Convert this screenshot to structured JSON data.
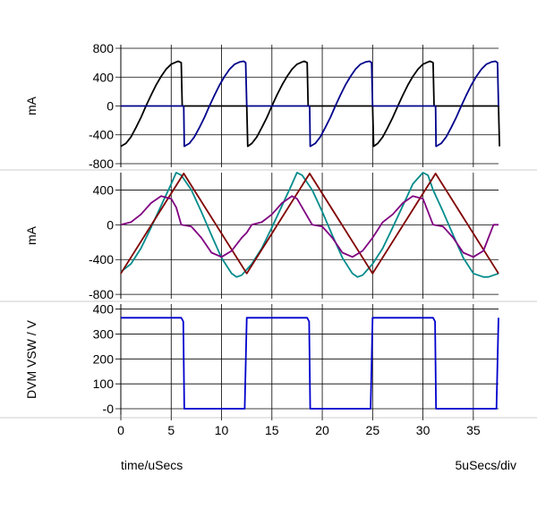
{
  "chart_data": [
    {
      "type": "line",
      "ylabel": "mA",
      "xlim": [
        0,
        37.5
      ],
      "ylim": [
        -850,
        850
      ],
      "yticks": [
        800,
        400,
        0,
        -400,
        -800
      ],
      "yticklabels": [
        "800",
        "400",
        "0",
        "-400",
        "-800"
      ],
      "grid": true,
      "series": [
        {
          "color": "#000000",
          "x": [
            0,
            0.5,
            1,
            1.5,
            2,
            2.5,
            3,
            3.5,
            4,
            4.5,
            5,
            5.5,
            5.7,
            6.0,
            6.1,
            6.25,
            12.5,
            12.6,
            13,
            13.5,
            14,
            14.5,
            15,
            15.5,
            16,
            16.5,
            17,
            17.5,
            18,
            18.2,
            18.5,
            18.6,
            18.75,
            25.0,
            25.1,
            25.5,
            26,
            26.5,
            27,
            27.5,
            28,
            28.5,
            29,
            29.5,
            30,
            30.5,
            30.7,
            31.0,
            31.1,
            31.25,
            37.5,
            37.6
          ],
          "y": [
            -560,
            -520,
            -430,
            -300,
            -160,
            0,
            150,
            290,
            410,
            510,
            580,
            610,
            620,
            600,
            0,
            0,
            0,
            -560,
            -520,
            -430,
            -300,
            -160,
            0,
            150,
            290,
            410,
            510,
            580,
            610,
            620,
            600,
            0,
            0,
            0,
            -560,
            -520,
            -430,
            -300,
            -160,
            0,
            150,
            290,
            410,
            510,
            580,
            610,
            620,
            600,
            0,
            0,
            0,
            -560
          ]
        },
        {
          "color": "#00008b",
          "x": [
            0,
            6.25,
            6.3,
            6.8,
            7.3,
            7.8,
            8.3,
            8.8,
            9.3,
            9.8,
            10.3,
            10.8,
            11.3,
            11.8,
            12.2,
            12.4,
            12.5,
            18.75,
            18.8,
            19.3,
            19.8,
            20.3,
            20.8,
            21.3,
            21.8,
            22.3,
            22.8,
            23.3,
            23.8,
            24.3,
            24.7,
            24.9,
            25.0,
            31.25,
            31.3,
            31.8,
            32.3,
            32.8,
            33.3,
            33.8,
            34.3,
            34.8,
            35.3,
            35.8,
            36.3,
            36.8,
            37.2,
            37.4,
            37.5
          ],
          "y": [
            0,
            0,
            -560,
            -520,
            -430,
            -300,
            -160,
            0,
            150,
            290,
            410,
            510,
            580,
            610,
            620,
            600,
            0,
            0,
            -560,
            -520,
            -430,
            -300,
            -160,
            0,
            150,
            290,
            410,
            510,
            580,
            610,
            620,
            600,
            0,
            0,
            -560,
            -520,
            -430,
            -300,
            -160,
            0,
            150,
            290,
            410,
            510,
            580,
            610,
            620,
            600,
            0
          ]
        }
      ]
    },
    {
      "type": "line",
      "ylabel": "mA",
      "xlim": [
        0,
        37.5
      ],
      "ylim": [
        -850,
        600
      ],
      "yticks": [
        400,
        0,
        -400,
        -800
      ],
      "yticklabels": [
        "400",
        "0",
        "-400",
        "-800"
      ],
      "grid": true,
      "series": [
        {
          "color": "#008b8b",
          "x": [
            0,
            1,
            2,
            3,
            4,
            5,
            5.5,
            6,
            7,
            8,
            9,
            10,
            11,
            11.5,
            12,
            13,
            14,
            15,
            16,
            17,
            17.5,
            18,
            19,
            20,
            21,
            22,
            23,
            23.5,
            24,
            25,
            26,
            27,
            28,
            29,
            30,
            30.5,
            31,
            32,
            33,
            34,
            35,
            36,
            36.5,
            37,
            37.5
          ],
          "y": [
            -540,
            -450,
            -270,
            -30,
            220,
            470,
            600,
            570,
            400,
            150,
            -120,
            -380,
            -560,
            -600,
            -580,
            -450,
            -270,
            -30,
            220,
            470,
            600,
            570,
            400,
            150,
            -120,
            -380,
            -560,
            -600,
            -580,
            -450,
            -270,
            -30,
            220,
            470,
            600,
            570,
            400,
            150,
            -120,
            -380,
            -560,
            -600,
            -600,
            -580,
            -560
          ]
        },
        {
          "color": "#800000",
          "x": [
            0,
            6.25,
            12.5,
            18.75,
            25,
            31.25,
            37.5
          ],
          "y": [
            -560,
            590,
            -560,
            590,
            -560,
            590,
            -560
          ]
        },
        {
          "color": "#800080",
          "x": [
            0,
            1,
            2,
            3,
            4,
            5,
            5.5,
            6,
            7,
            8,
            9,
            10,
            11,
            12,
            12.5,
            13,
            14,
            15,
            16,
            17,
            17.5,
            18,
            19,
            20,
            21,
            22,
            23,
            24,
            25,
            26,
            27,
            28,
            29,
            30,
            31,
            32,
            33,
            34,
            35,
            36,
            37,
            37.5
          ],
          "y": [
            0,
            30,
            120,
            250,
            330,
            300,
            200,
            0,
            -20,
            -150,
            -320,
            -370,
            -300,
            -150,
            -90,
            0,
            30,
            120,
            250,
            330,
            300,
            200,
            0,
            -20,
            -150,
            -320,
            -370,
            -300,
            -150,
            30,
            120,
            250,
            330,
            300,
            0,
            -20,
            -150,
            -320,
            -370,
            -300,
            0,
            0
          ]
        }
      ]
    },
    {
      "type": "line",
      "ylabel": "DVM VSW / V",
      "xlabel": "time/uSecs",
      "xlabel_right": "5uSecs/div",
      "xlim": [
        0,
        37.5
      ],
      "ylim": [
        -25,
        420
      ],
      "yticks": [
        400,
        300,
        200,
        100,
        0
      ],
      "yticklabels": [
        "400",
        "300",
        "200",
        "100",
        "-0"
      ],
      "xticks": [
        0,
        5,
        10,
        15,
        20,
        25,
        30,
        35
      ],
      "xticklabels": [
        "0",
        "5",
        "10",
        "15",
        "20",
        "25",
        "30",
        "35"
      ],
      "grid": true,
      "series": [
        {
          "color": "#0000cd",
          "x": [
            0,
            6.0,
            6.2,
            6.3,
            12.3,
            12.5,
            18.5,
            18.7,
            18.8,
            24.8,
            25.0,
            31.0,
            31.2,
            31.3,
            37.3,
            37.5
          ],
          "y": [
            365,
            365,
            350,
            0,
            0,
            365,
            365,
            350,
            0,
            0,
            365,
            365,
            350,
            0,
            0,
            365
          ]
        }
      ]
    }
  ]
}
